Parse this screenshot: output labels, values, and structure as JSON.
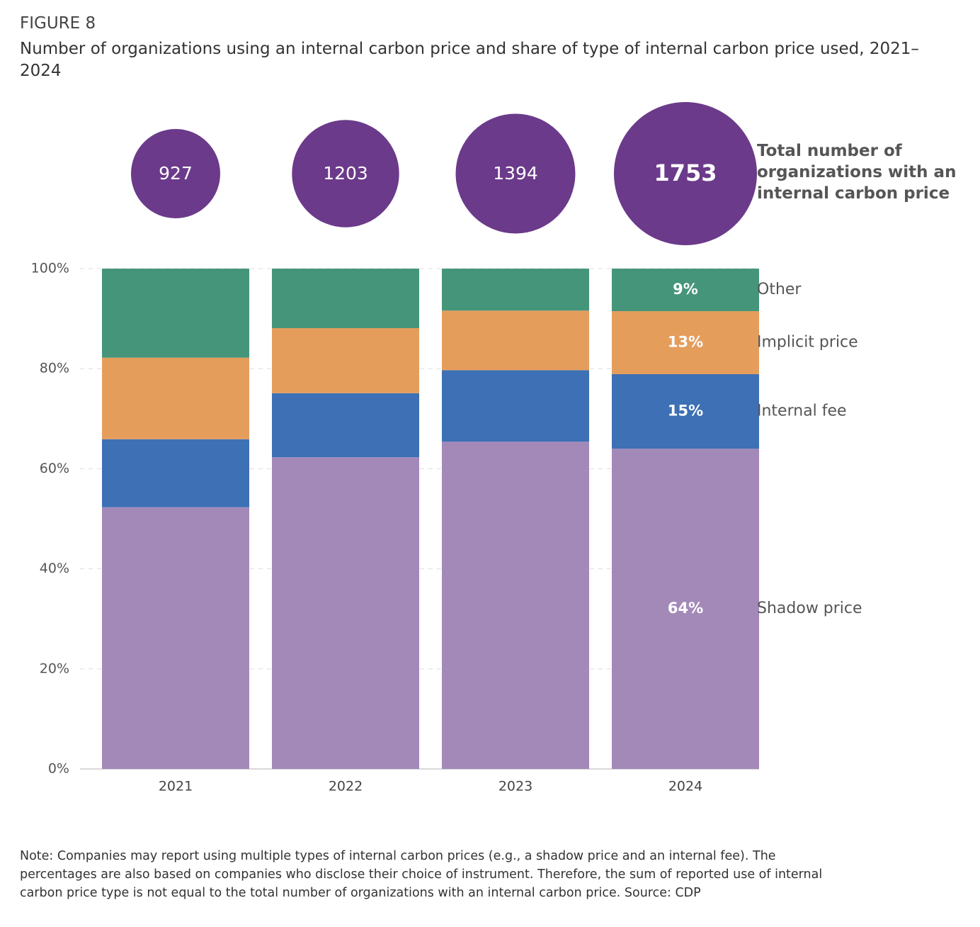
{
  "chart_data": {
    "type": "stacked-bar",
    "figure_label": "FIGURE 8",
    "title": "Number of organizations using an internal carbon price and share of type of internal carbon price used, 2021–2024",
    "note": "Note: Companies may report using multiple types of internal carbon prices (e.g., a shadow price and an internal fee). The percentages are also based on companies who disclose their choice of instrument. Therefore, the sum of reported use of internal carbon price type is not equal to the total number of organizations with an internal carbon price. Source: CDP",
    "categories": [
      "2021",
      "2022",
      "2023",
      "2024"
    ],
    "series": [
      {
        "name": "Shadow price",
        "color": "#a389b8",
        "values": [
          52.3,
          62.3,
          65.4,
          64.0
        ],
        "value_labels": [
          null,
          null,
          null,
          "64%"
        ]
      },
      {
        "name": "Internal fee",
        "color": "#3d70b4",
        "values": [
          13.6,
          12.8,
          14.3,
          14.9
        ],
        "value_labels": [
          null,
          null,
          null,
          "15%"
        ]
      },
      {
        "name": "Implicit price",
        "color": "#e59d5c",
        "values": [
          16.3,
          13.0,
          11.9,
          12.6
        ],
        "value_labels": [
          null,
          null,
          null,
          "13%"
        ]
      },
      {
        "name": "Other",
        "color": "#45957a",
        "values": [
          17.8,
          11.9,
          8.4,
          8.5
        ],
        "value_labels": [
          null,
          null,
          null,
          "9%"
        ]
      }
    ],
    "totals": {
      "label": "Total number of organizations with an internal carbon price",
      "color": "#6b3a8a",
      "values": [
        927,
        1203,
        1394,
        1753
      ]
    },
    "ylim": [
      0,
      100
    ],
    "yticks": [
      {
        "value": 0,
        "label": "0%"
      },
      {
        "value": 20,
        "label": "20%"
      },
      {
        "value": 40,
        "label": "40%"
      },
      {
        "value": 60,
        "label": "60%"
      },
      {
        "value": 80,
        "label": "80%"
      },
      {
        "value": 100,
        "label": "100%"
      }
    ],
    "grid": true
  }
}
